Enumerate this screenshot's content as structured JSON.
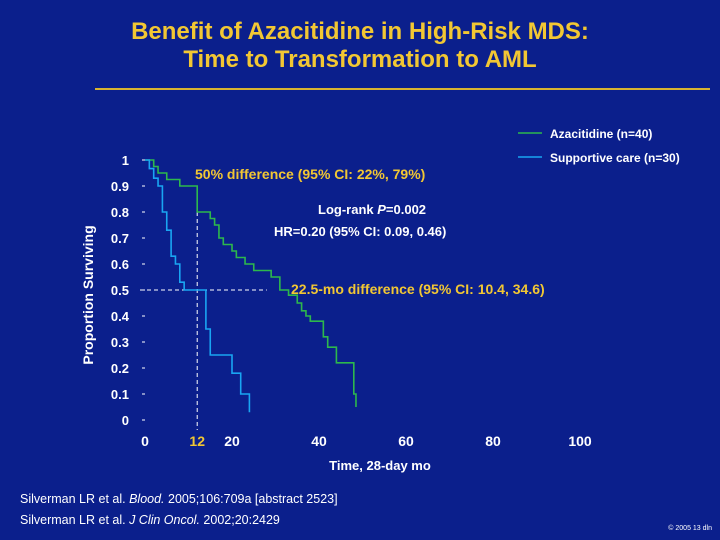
{
  "slide": {
    "title_line1": "Benefit of Azacitidine in High-Risk MDS:",
    "title_line2": "Time to Transformation to AML",
    "references": [
      {
        "authors": "Silverman LR et al. ",
        "journal": "Blood.",
        "rest": " 2005;106:709a [abstract 2523]"
      },
      {
        "authors": "Silverman LR et al. ",
        "journal": "J Clin Oncol.",
        "rest": " 2002;20:2429"
      }
    ],
    "copyright": "© 2005 13 dln"
  },
  "chart_data": {
    "type": "line",
    "title": "",
    "xlabel": "Time, 28-day mo",
    "ylabel": "Proportion Surviving",
    "xlim": [
      0,
      100
    ],
    "ylim": [
      0,
      1
    ],
    "xticks": [
      0,
      20,
      40,
      60,
      80,
      100
    ],
    "yticks": [
      0,
      0.1,
      0.2,
      0.3,
      0.4,
      0.5,
      0.6,
      0.7,
      0.8,
      0.9,
      1
    ],
    "ytick_labels": [
      "0",
      "0.1",
      "0.2",
      "0.3",
      "0.4",
      "0.5",
      "0.6",
      "0.7",
      "0.8",
      "0.9",
      "1"
    ],
    "highlight_x": {
      "value": 12,
      "label": "12",
      "color": "#f2c733"
    },
    "median_line_y": 0.5,
    "colors": {
      "azacitidine": "#2db84c",
      "supportive": "#19a5f2",
      "annotation": "#f2c733",
      "text": "#ffffff"
    },
    "series": [
      {
        "name": "Azacitidine (n=40)",
        "color": "#2db84c",
        "x": [
          0,
          1,
          2,
          3,
          5,
          8,
          11,
          12,
          14,
          15,
          16,
          17,
          18,
          20,
          21,
          23,
          25,
          29,
          31,
          33,
          35,
          36,
          37,
          38,
          41,
          42,
          44,
          48,
          48.5
        ],
        "y": [
          1,
          1,
          0.975,
          0.95,
          0.925,
          0.9,
          0.9,
          0.8,
          0.8,
          0.775,
          0.75,
          0.7,
          0.675,
          0.65,
          0.625,
          0.6,
          0.575,
          0.55,
          0.5,
          0.48,
          0.45,
          0.42,
          0.4,
          0.38,
          0.32,
          0.28,
          0.22,
          0.1,
          0.05
        ]
      },
      {
        "name": "Supportive care (n=30)",
        "color": "#19a5f2",
        "x": [
          0,
          1,
          2,
          3,
          4,
          5,
          6,
          7,
          8,
          9,
          14,
          15,
          20,
          22,
          24
        ],
        "y": [
          1,
          0.967,
          0.93,
          0.9,
          0.8,
          0.73,
          0.63,
          0.6,
          0.53,
          0.5,
          0.35,
          0.25,
          0.18,
          0.1,
          0.03
        ]
      }
    ],
    "annotations": [
      {
        "id": "pct",
        "text": "50% difference (95% CI: 22%, 79%)",
        "color": "#f2c733"
      },
      {
        "id": "logrank_pre",
        "text": "Log-rank ",
        "color": "#ffffff"
      },
      {
        "id": "logrank_p",
        "text": "P",
        "color": "#ffffff"
      },
      {
        "id": "logrank_post",
        "text": "=0.002",
        "color": "#ffffff"
      },
      {
        "id": "hr",
        "text": "HR=0.20 (95% CI: 0.09, 0.46)",
        "color": "#ffffff"
      },
      {
        "id": "mo",
        "text": "22.5-mo difference (95% CI: 10.4, 34.6)",
        "color": "#f2c733"
      }
    ],
    "legend_position": "top-right"
  }
}
